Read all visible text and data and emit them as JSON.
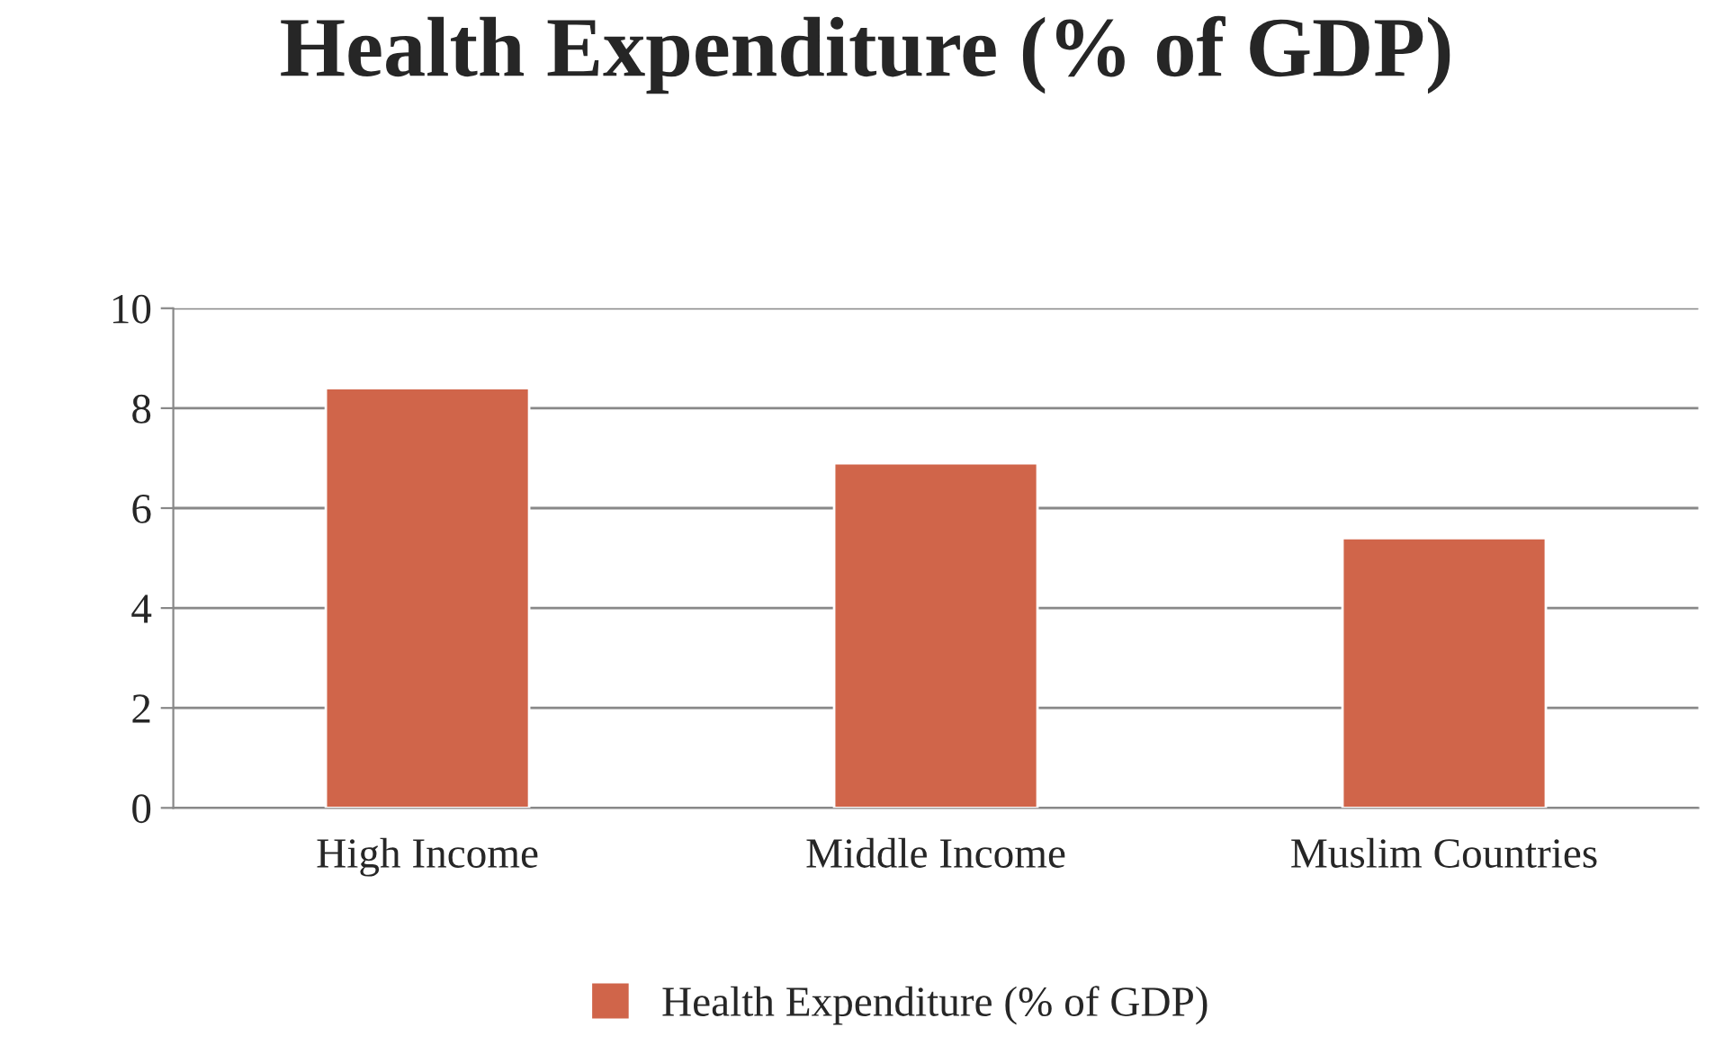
{
  "chart_data": {
    "type": "bar",
    "title": "Health Expenditure (% of GDP)",
    "categories": [
      "High Income",
      "Middle Income",
      "Muslim Countries"
    ],
    "series": [
      {
        "name": "Health Expenditure (% of GDP)",
        "color": "#d0654a",
        "values": [
          8.4,
          6.9,
          5.4
        ]
      }
    ],
    "ylim": [
      0,
      10
    ],
    "yticks": [
      0,
      2,
      4,
      6,
      8,
      10
    ],
    "grid": "y",
    "legend": "bottom"
  }
}
